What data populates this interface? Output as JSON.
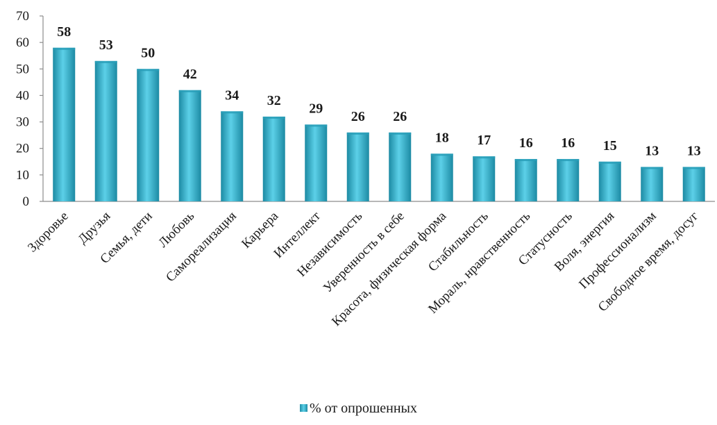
{
  "chart_data": {
    "type": "bar",
    "categories": [
      "Здоровье",
      "Друзья",
      "Семья, дети",
      "Любовь",
      "Самореализация",
      "Карьера",
      "Интеллект",
      "Независимость",
      "Уверенность в себе",
      "Красота, физическая форма",
      "Стабильность",
      "Мораль, нравственность",
      "Статусность",
      "Воля, энергия",
      "Профессионализм",
      "Свободное время, досуг"
    ],
    "series": [
      {
        "name": "% от опрошенных",
        "values": [
          58,
          53,
          50,
          42,
          34,
          32,
          29,
          26,
          26,
          18,
          17,
          16,
          16,
          15,
          13,
          13
        ]
      }
    ],
    "ylim": [
      0,
      70
    ],
    "yticks": [
      "0",
      "10",
      "20",
      "30",
      "40",
      "50",
      "60",
      "70"
    ],
    "grid": false,
    "legend_position": "bottom",
    "data_labels": true,
    "colors": {
      "bar_dark": "#1c8aa3",
      "bar_light": "#5cd0e8",
      "bar_top": "#2a9fb8",
      "axis": "#8c8c8c"
    }
  }
}
